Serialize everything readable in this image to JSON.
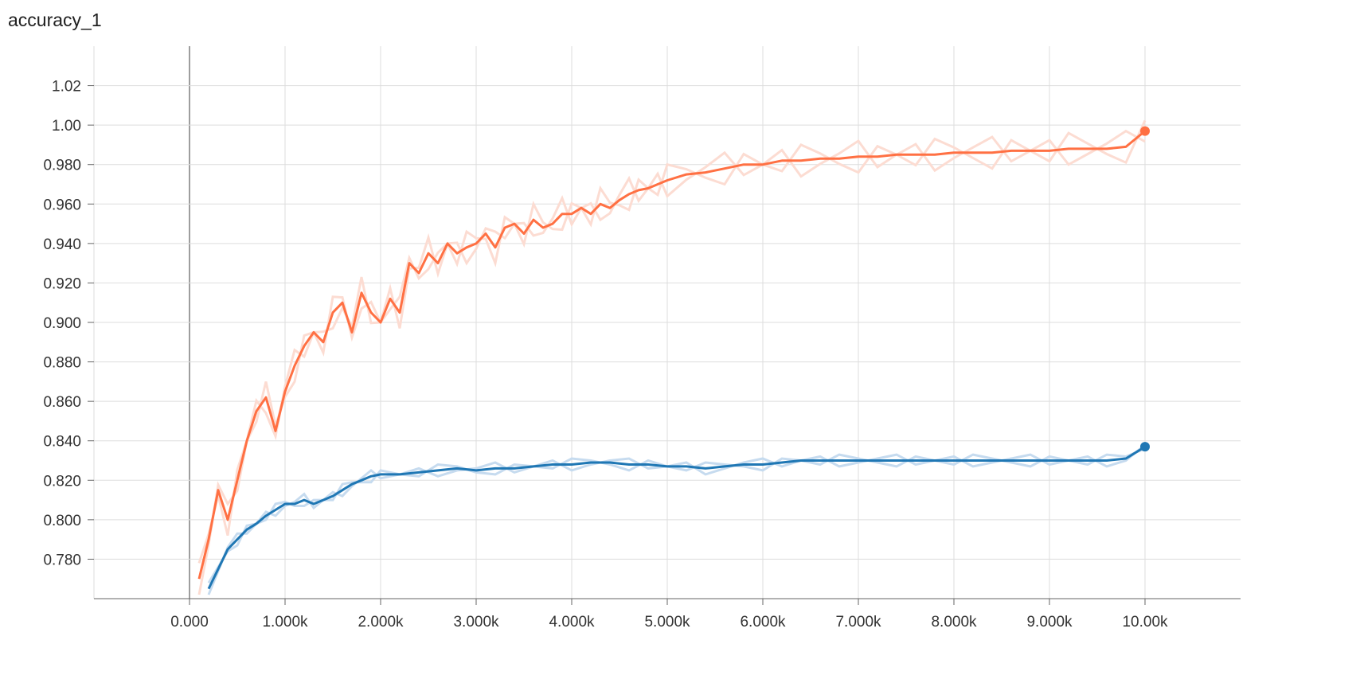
{
  "chart_data": {
    "type": "line",
    "title": "accuracy_1",
    "xlabel": "",
    "ylabel": "",
    "xlim": [
      -1000,
      11000
    ],
    "ylim": [
      0.76,
      1.04
    ],
    "grid": true,
    "x_ticks": [
      0,
      1000,
      2000,
      3000,
      4000,
      5000,
      6000,
      7000,
      8000,
      9000,
      10000
    ],
    "x_tick_labels": [
      "0.000",
      "1.000k",
      "2.000k",
      "3.000k",
      "4.000k",
      "5.000k",
      "6.000k",
      "7.000k",
      "8.000k",
      "9.000k",
      "10.00k"
    ],
    "y_ticks": [
      0.78,
      0.8,
      0.82,
      0.84,
      0.86,
      0.88,
      0.9,
      0.92,
      0.94,
      0.96,
      0.98,
      1.0,
      1.02
    ],
    "y_tick_labels": [
      "0.780",
      "0.800",
      "0.820",
      "0.840",
      "0.860",
      "0.880",
      "0.900",
      "0.920",
      "0.940",
      "0.960",
      "0.980",
      "1.00",
      "1.02"
    ],
    "series": [
      {
        "color": "#ff7043",
        "raw_color": "#fcdcd2",
        "x": [
          100,
          200,
          300,
          400,
          500,
          600,
          700,
          800,
          900,
          1000,
          1100,
          1200,
          1300,
          1400,
          1500,
          1600,
          1700,
          1800,
          1900,
          2000,
          2100,
          2200,
          2300,
          2400,
          2500,
          2600,
          2700,
          2800,
          2900,
          3000,
          3100,
          3200,
          3300,
          3400,
          3500,
          3600,
          3700,
          3800,
          3900,
          4000,
          4100,
          4200,
          4300,
          4400,
          4500,
          4600,
          4700,
          4800,
          4900,
          5000,
          5200,
          5400,
          5600,
          5800,
          6000,
          6200,
          6400,
          6600,
          6800,
          7000,
          7200,
          7400,
          7600,
          7800,
          8000,
          8200,
          8400,
          8600,
          8800,
          9000,
          9200,
          9400,
          9600,
          9800,
          10000
        ],
        "values": [
          0.77,
          0.79,
          0.815,
          0.8,
          0.82,
          0.84,
          0.855,
          0.862,
          0.845,
          0.865,
          0.878,
          0.888,
          0.895,
          0.89,
          0.905,
          0.91,
          0.895,
          0.915,
          0.905,
          0.9,
          0.912,
          0.905,
          0.93,
          0.925,
          0.935,
          0.93,
          0.94,
          0.935,
          0.938,
          0.94,
          0.945,
          0.938,
          0.948,
          0.95,
          0.945,
          0.952,
          0.948,
          0.95,
          0.955,
          0.955,
          0.958,
          0.955,
          0.96,
          0.958,
          0.962,
          0.965,
          0.967,
          0.968,
          0.97,
          0.972,
          0.975,
          0.976,
          0.978,
          0.98,
          0.98,
          0.982,
          0.982,
          0.983,
          0.983,
          0.984,
          0.984,
          0.985,
          0.985,
          0.985,
          0.986,
          0.986,
          0.986,
          0.987,
          0.987,
          0.987,
          0.988,
          0.988,
          0.988,
          0.989,
          0.997
        ]
      },
      {
        "color": "#1f77b4",
        "raw_color": "#c6dbef",
        "x": [
          200,
          300,
          400,
          500,
          600,
          700,
          800,
          900,
          1000,
          1100,
          1200,
          1300,
          1400,
          1500,
          1600,
          1700,
          1800,
          1900,
          2000,
          2200,
          2400,
          2600,
          2800,
          3000,
          3200,
          3400,
          3600,
          3800,
          4000,
          4200,
          4400,
          4600,
          4800,
          5000,
          5200,
          5400,
          5600,
          5800,
          6000,
          6200,
          6400,
          6600,
          6800,
          7000,
          7200,
          7400,
          7600,
          7800,
          8000,
          8200,
          8400,
          8600,
          8800,
          9000,
          9200,
          9400,
          9600,
          9800,
          10000
        ],
        "values": [
          0.765,
          0.775,
          0.785,
          0.79,
          0.795,
          0.798,
          0.802,
          0.805,
          0.808,
          0.808,
          0.81,
          0.808,
          0.81,
          0.812,
          0.815,
          0.818,
          0.82,
          0.822,
          0.823,
          0.823,
          0.824,
          0.825,
          0.826,
          0.825,
          0.826,
          0.826,
          0.827,
          0.828,
          0.828,
          0.829,
          0.829,
          0.828,
          0.828,
          0.827,
          0.827,
          0.826,
          0.827,
          0.828,
          0.828,
          0.829,
          0.83,
          0.83,
          0.83,
          0.83,
          0.83,
          0.83,
          0.83,
          0.83,
          0.83,
          0.83,
          0.83,
          0.83,
          0.83,
          0.83,
          0.83,
          0.83,
          0.83,
          0.831,
          0.837
        ]
      }
    ]
  }
}
